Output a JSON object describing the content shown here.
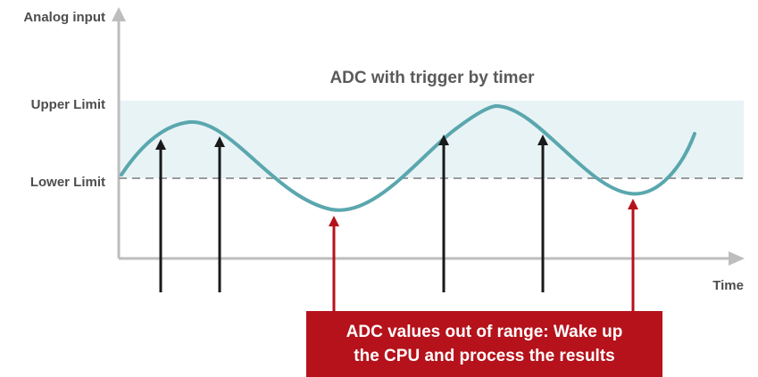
{
  "title": "ADC with trigger by timer",
  "y_axis_label": "Analog input",
  "x_axis_label": "Time",
  "upper_limit_label": "Upper Limit",
  "lower_limit_label": "Lower Limit",
  "callout": {
    "line1": "ADC values out of range: Wake up",
    "line2": "the CPU and process the results"
  },
  "colors": {
    "signal": "#5aa7ae",
    "band": "#e8f3f5",
    "in_range_arrow": "#1a1a1a",
    "out_of_range_arrow": "#b5121b",
    "axis": "#bdbdbd",
    "lower_limit_line": "#9a9a9a"
  }
}
